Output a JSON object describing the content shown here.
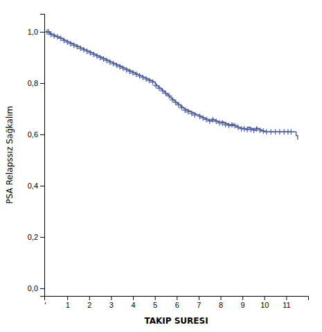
{
  "chart_data": {
    "type": "step",
    "xlabel": "TAKIP SURESI",
    "ylabel": "PSA Relapssız Sağkalım",
    "xlim": [
      -0.05,
      12.0
    ],
    "ylim": [
      -0.03,
      1.07
    ],
    "xticks": [
      1,
      2,
      3,
      4,
      5,
      6,
      7,
      8,
      9,
      10,
      11
    ],
    "yticks": [
      {
        "value": 0.0,
        "label": "0,0"
      },
      {
        "value": 0.2,
        "label": "0,2"
      },
      {
        "value": 0.4,
        "label": "0,4"
      },
      {
        "value": 0.6,
        "label": "0,6"
      },
      {
        "value": 0.8,
        "label": "0,8"
      },
      {
        "value": 1.0,
        "label": "1,0"
      }
    ],
    "grid": false,
    "annotations": [
      {
        "x": 0,
        "text": "'"
      }
    ],
    "series": [
      {
        "type": "step",
        "color": "#4C5F9E",
        "line_style": "solid",
        "x": [
          0.0,
          0.05,
          0.1,
          0.18,
          0.22,
          0.3,
          0.38,
          0.45,
          0.52,
          0.6,
          0.68,
          0.75,
          0.82,
          0.9,
          0.98,
          1.05,
          1.12,
          1.2,
          1.28,
          1.35,
          1.42,
          1.5,
          1.58,
          1.65,
          1.72,
          1.8,
          1.88,
          1.95,
          2.02,
          2.1,
          2.18,
          2.25,
          2.32,
          2.4,
          2.48,
          2.55,
          2.62,
          2.7,
          2.78,
          2.85,
          2.92,
          3.0,
          3.08,
          3.15,
          3.22,
          3.3,
          3.38,
          3.45,
          3.52,
          3.6,
          3.68,
          3.75,
          3.82,
          3.9,
          3.98,
          4.05,
          4.12,
          4.2,
          4.28,
          4.35,
          4.42,
          4.5,
          4.58,
          4.65,
          4.72,
          4.8,
          4.88,
          4.95,
          5.02,
          5.08,
          5.15,
          5.22,
          5.28,
          5.35,
          5.42,
          5.48,
          5.55,
          5.62,
          5.68,
          5.75,
          5.82,
          5.88,
          5.95,
          6.02,
          6.1,
          6.18,
          6.25,
          6.32,
          6.4,
          6.48,
          6.55,
          6.62,
          6.7,
          6.78,
          6.85,
          6.92,
          7.0,
          7.08,
          7.15,
          7.22,
          7.3,
          7.38,
          7.45,
          7.52,
          7.6,
          7.68,
          7.75,
          7.82,
          7.9,
          7.98,
          8.05,
          8.12,
          8.2,
          8.28,
          8.35,
          8.42,
          8.5,
          8.58,
          8.65,
          8.72,
          8.8,
          8.88,
          8.95,
          9.02,
          9.1,
          9.18,
          9.25,
          9.32,
          9.4,
          9.48,
          9.55,
          9.62,
          9.7,
          9.78,
          9.85,
          9.92,
          10.0,
          10.1,
          10.2,
          10.3,
          10.4,
          10.5,
          10.6,
          10.7,
          10.8,
          10.9,
          11.0,
          11.1,
          11.2,
          11.3,
          11.38,
          11.45,
          11.52
        ],
        "values": [
          1.0,
          1.0,
          1.0,
          0.996,
          0.993,
          0.99,
          0.987,
          0.984,
          0.981,
          0.978,
          0.975,
          0.972,
          0.969,
          0.966,
          0.963,
          0.96,
          0.957,
          0.954,
          0.951,
          0.948,
          0.945,
          0.942,
          0.939,
          0.936,
          0.933,
          0.93,
          0.927,
          0.924,
          0.921,
          0.918,
          0.915,
          0.912,
          0.909,
          0.906,
          0.903,
          0.9,
          0.897,
          0.894,
          0.891,
          0.888,
          0.885,
          0.882,
          0.879,
          0.876,
          0.873,
          0.87,
          0.867,
          0.864,
          0.861,
          0.858,
          0.855,
          0.852,
          0.849,
          0.846,
          0.843,
          0.84,
          0.837,
          0.834,
          0.831,
          0.828,
          0.825,
          0.822,
          0.819,
          0.816,
          0.813,
          0.81,
          0.807,
          0.804,
          0.795,
          0.79,
          0.785,
          0.78,
          0.775,
          0.77,
          0.765,
          0.76,
          0.755,
          0.75,
          0.745,
          0.74,
          0.735,
          0.73,
          0.725,
          0.72,
          0.715,
          0.71,
          0.705,
          0.7,
          0.697,
          0.694,
          0.691,
          0.688,
          0.685,
          0.682,
          0.679,
          0.676,
          0.673,
          0.67,
          0.667,
          0.664,
          0.661,
          0.658,
          0.655,
          0.652,
          0.66,
          0.657,
          0.654,
          0.651,
          0.648,
          0.645,
          0.65,
          0.647,
          0.644,
          0.641,
          0.638,
          0.635,
          0.64,
          0.637,
          0.634,
          0.631,
          0.628,
          0.625,
          0.622,
          0.625,
          0.622,
          0.619,
          0.628,
          0.625,
          0.622,
          0.619,
          0.616,
          0.625,
          0.622,
          0.619,
          0.616,
          0.613,
          0.61,
          0.61,
          0.61,
          0.61,
          0.61,
          0.61,
          0.61,
          0.61,
          0.61,
          0.61,
          0.61,
          0.61,
          0.61,
          0.61,
          0.61,
          0.595,
          0.58
        ]
      },
      {
        "type": "scatter",
        "color": "#4C5F9E",
        "marker": "plus",
        "x": [
          0.08,
          0.15,
          0.25,
          0.4,
          0.55,
          0.7,
          0.85,
          1.0,
          1.15,
          1.3,
          1.45,
          1.6,
          1.75,
          1.9,
          2.05,
          2.2,
          2.35,
          2.5,
          2.65,
          2.8,
          2.95,
          3.1,
          3.25,
          3.4,
          3.55,
          3.7,
          3.85,
          4.0,
          4.15,
          4.3,
          4.45,
          4.6,
          4.75,
          4.9,
          5.05,
          5.2,
          5.35,
          5.5,
          5.65,
          5.8,
          5.95,
          6.08,
          6.22,
          6.38,
          6.52,
          6.68,
          6.82,
          7.05,
          7.2,
          7.35,
          7.5,
          7.65,
          7.8,
          7.95,
          8.08,
          8.22,
          8.38,
          8.52,
          8.65,
          8.8,
          8.95,
          9.08,
          9.22,
          9.38,
          9.52,
          9.65,
          9.8,
          9.95,
          10.1,
          10.3,
          10.5,
          10.7,
          10.9,
          11.08,
          11.22
        ],
        "values": [
          1.0,
          1.0,
          0.99,
          0.984,
          0.981,
          0.975,
          0.966,
          0.96,
          0.954,
          0.948,
          0.942,
          0.936,
          0.93,
          0.924,
          0.918,
          0.912,
          0.906,
          0.9,
          0.894,
          0.888,
          0.882,
          0.876,
          0.87,
          0.864,
          0.858,
          0.852,
          0.846,
          0.84,
          0.834,
          0.828,
          0.822,
          0.816,
          0.81,
          0.804,
          0.79,
          0.78,
          0.77,
          0.76,
          0.75,
          0.735,
          0.725,
          0.715,
          0.705,
          0.694,
          0.688,
          0.682,
          0.676,
          0.67,
          0.664,
          0.658,
          0.652,
          0.657,
          0.651,
          0.645,
          0.644,
          0.638,
          0.635,
          0.637,
          0.634,
          0.628,
          0.622,
          0.622,
          0.619,
          0.619,
          0.616,
          0.622,
          0.616,
          0.613,
          0.61,
          0.61,
          0.61,
          0.61,
          0.61,
          0.61,
          0.61
        ]
      }
    ]
  }
}
